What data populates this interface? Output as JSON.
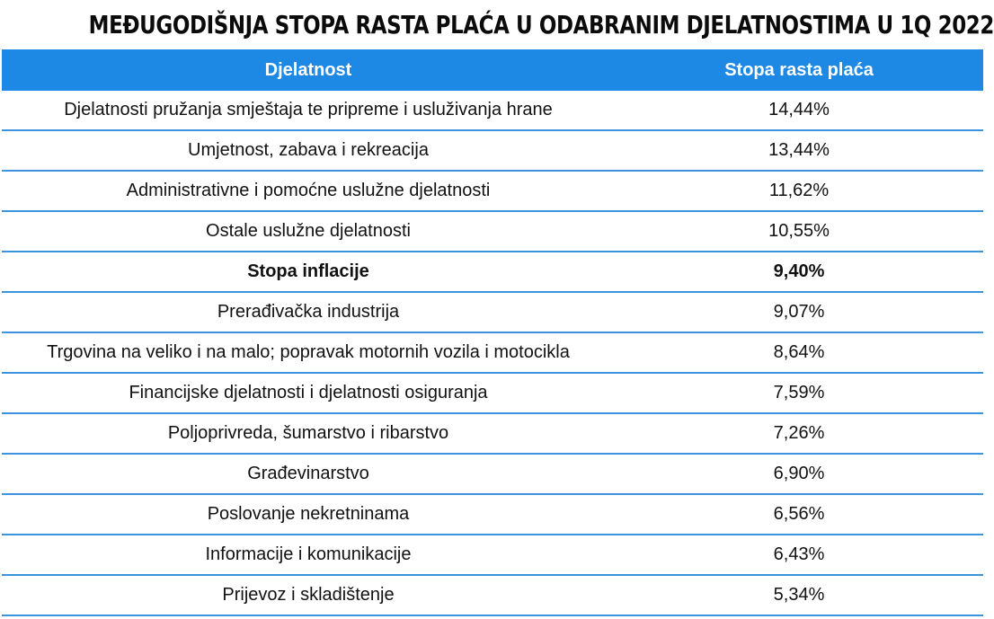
{
  "title": "MEĐUGODIŠNJA STOPA RASTA PLAĆA U ODABRANIM DJELATNOSTIMA U 1Q 2022",
  "colors": {
    "header_bg": "#1e88e5",
    "header_text": "#ffffff",
    "row_divider": "#3d94de"
  },
  "chart_data": {
    "type": "table",
    "title": "MEĐUGODIŠNJA STOPA RASTA PLAĆA U ODABRANIM DJELATNOSTIMA U 1Q 2022",
    "columns": [
      "Djelatnost",
      "Stopa rasta plaća"
    ],
    "rows": [
      {
        "label": "Djelatnosti pružanja smještaja te pripreme i usluživanja hrane",
        "value": "14,44%",
        "bold": false
      },
      {
        "label": "Umjetnost, zabava i rekreacija",
        "value": "13,44%",
        "bold": false
      },
      {
        "label": "Administrativne i pomoćne uslužne djelatnosti",
        "value": "11,62%",
        "bold": false
      },
      {
        "label": "Ostale uslužne djelatnosti",
        "value": "10,55%",
        "bold": false
      },
      {
        "label": "Stopa inflacije",
        "value": "9,40%",
        "bold": true
      },
      {
        "label": "Prerađivačka industrija",
        "value": "9,07%",
        "bold": false
      },
      {
        "label": "Trgovina na veliko i na malo; popravak motornih vozila i motocikla",
        "value": "8,64%",
        "bold": false
      },
      {
        "label": "Financijske djelatnosti i djelatnosti osiguranja",
        "value": "7,59%",
        "bold": false
      },
      {
        "label": "Poljoprivreda, šumarstvo i ribarstvo",
        "value": "7,26%",
        "bold": false
      },
      {
        "label": "Građevinarstvo",
        "value": "6,90%",
        "bold": false
      },
      {
        "label": "Poslovanje nekretninama",
        "value": "6,56%",
        "bold": false
      },
      {
        "label": "Informacije i komunikacije",
        "value": "6,43%",
        "bold": false
      },
      {
        "label": "Prijevoz i skladištenje",
        "value": "5,34%",
        "bold": false
      }
    ]
  }
}
